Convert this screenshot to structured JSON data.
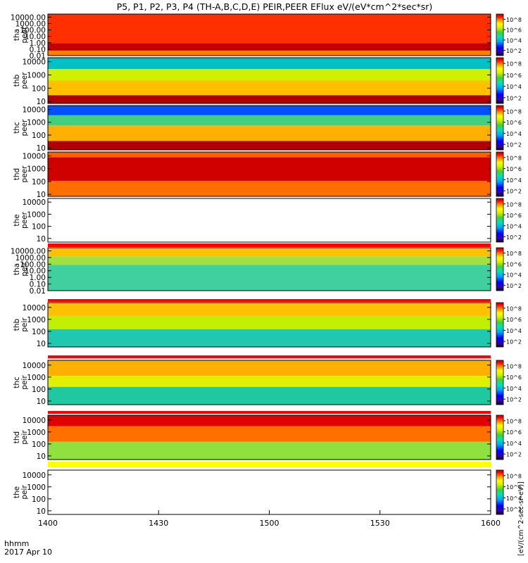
{
  "chart_data": {
    "type": "heatmap",
    "title": "P5, P1, P2, P3, P4 (TH-A,B,C,D,E) PEIR,PEER EFlux eV/(eV*cm^2*sec*sr)",
    "x_corner_labels": [
      "hhmm",
      "2017 Apr 10"
    ],
    "x_axis": {
      "unit": "hhmm",
      "range": [
        "1400",
        "1600"
      ],
      "tick_labels": [
        "1400",
        "1430",
        "1500",
        "1530",
        "1600"
      ]
    },
    "colorbar_label": "[eV/(cm^2-sec-sr-eV)] ",
    "colorbar_ticks": [
      "10^8",
      "10^6",
      "10^4",
      "10^2"
    ],
    "colorbar_tick_values": [
      8,
      6,
      4,
      2
    ],
    "colorbar_range_log10": [
      1,
      9
    ],
    "panels": [
      {
        "id": "tha-peer",
        "probe": "tha",
        "species": "peer",
        "ylabel": [
          "tha",
          "peer"
        ],
        "yscale": "log",
        "ylim": [
          0.01,
          30000
        ],
        "yticks": [
          "10000.00",
          "1000.00",
          "100.00",
          "10.00",
          "1.00",
          "0.10",
          "0.01"
        ],
        "ytick_values": [
          10000,
          1000,
          100,
          10,
          1,
          0.1,
          0.01
        ]
      },
      {
        "id": "thb-peer",
        "probe": "thb",
        "species": "peer",
        "ylabel": [
          "thb",
          "peer"
        ],
        "yscale": "log",
        "ylim": [
          7,
          20000
        ],
        "yticks": [
          "10000",
          "1000",
          "100",
          "10"
        ],
        "ytick_values": [
          10000,
          1000,
          100,
          10
        ]
      },
      {
        "id": "thc-peer",
        "probe": "thc",
        "species": "peer",
        "ylabel": [
          "thc",
          "peer"
        ],
        "yscale": "log",
        "ylim": [
          7,
          20000
        ],
        "yticks": [
          "10000",
          "1000",
          "100",
          "10"
        ],
        "ytick_values": [
          10000,
          1000,
          100,
          10
        ]
      },
      {
        "id": "thd-peer",
        "probe": "thd",
        "species": "peer",
        "ylabel": [
          "thd",
          "peer"
        ],
        "yscale": "log",
        "ylim": [
          7,
          20000
        ],
        "yticks": [
          "10000",
          "1000",
          "100",
          "10"
        ],
        "ytick_values": [
          10000,
          1000,
          100,
          10
        ]
      },
      {
        "id": "the-peer",
        "probe": "the",
        "species": "peer",
        "ylabel": [
          "the",
          "peer"
        ],
        "yscale": "log",
        "ylim": [
          5,
          20000
        ],
        "yticks": [
          "10000",
          "1000",
          "100",
          "10"
        ],
        "ytick_values": [
          10000,
          1000,
          100,
          10
        ]
      },
      {
        "id": "tha-peir",
        "probe": "tha",
        "species": "peir",
        "ylabel": [
          "tha",
          "peir"
        ],
        "yscale": "log",
        "ylim": [
          0.01,
          30000
        ],
        "yticks": [
          "10000.00",
          "1000.00",
          "100.00",
          "10.00",
          "1.00",
          "0.10",
          "0.01"
        ],
        "ytick_values": [
          10000,
          1000,
          100,
          10,
          1,
          0.1,
          0.01
        ]
      },
      {
        "id": "thb-peir",
        "probe": "thb",
        "species": "peir",
        "ylabel": [
          "thb",
          "peir"
        ],
        "yscale": "log",
        "ylim": [
          5,
          25000
        ],
        "yticks": [
          "10000",
          "1000",
          "100",
          "10"
        ],
        "ytick_values": [
          10000,
          1000,
          100,
          10
        ]
      },
      {
        "id": "thc-peir",
        "probe": "thc",
        "species": "peir",
        "ylabel": [
          "thc",
          "peir"
        ],
        "yscale": "log",
        "ylim": [
          5,
          25000
        ],
        "yticks": [
          "10000",
          "1000",
          "100",
          "10"
        ],
        "ytick_values": [
          10000,
          1000,
          100,
          10
        ]
      },
      {
        "id": "thd-peir",
        "probe": "thd",
        "species": "peir",
        "ylabel": [
          "thd",
          "peir"
        ],
        "yscale": "log",
        "ylim": [
          5,
          25000
        ],
        "yticks": [
          "10000",
          "1000",
          "100",
          "10"
        ],
        "ytick_values": [
          10000,
          1000,
          100,
          10
        ]
      },
      {
        "id": "the-peir",
        "probe": "the",
        "species": "peir",
        "ylabel": [
          "the",
          "peir"
        ],
        "yscale": "log",
        "ylim": [
          5,
          25000
        ],
        "yticks": [
          "10000",
          "1000",
          "100",
          "10"
        ],
        "ytick_values": [
          10000,
          1000,
          100,
          10
        ]
      }
    ]
  }
}
